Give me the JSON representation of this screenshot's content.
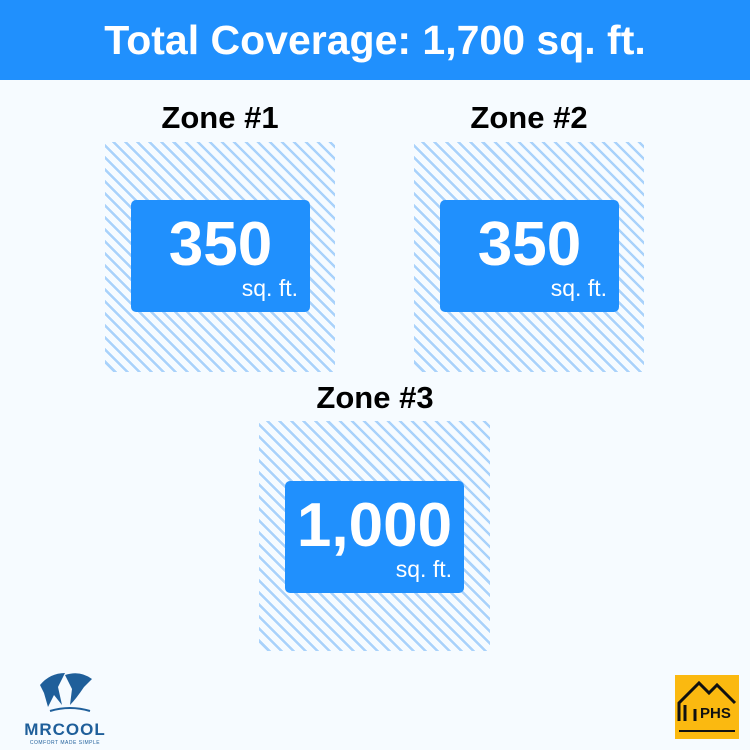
{
  "header": {
    "title": "Total Coverage: 1,700 sq. ft."
  },
  "zones": [
    {
      "title": "Zone #1",
      "value": "350",
      "unit": "sq. ft."
    },
    {
      "title": "Zone #2",
      "value": "350",
      "unit": "sq. ft."
    },
    {
      "title": "Zone #3",
      "value": "1,000",
      "unit": "sq. ft."
    }
  ],
  "logos": {
    "mrcool": "MRCOOL",
    "mrcool_tagline": "COMFORT MADE SIMPLE",
    "phs": "PHS"
  },
  "colors": {
    "accent": "#2090fd",
    "hatch": "#a9d2fb",
    "phs_bg": "#fbb910"
  }
}
